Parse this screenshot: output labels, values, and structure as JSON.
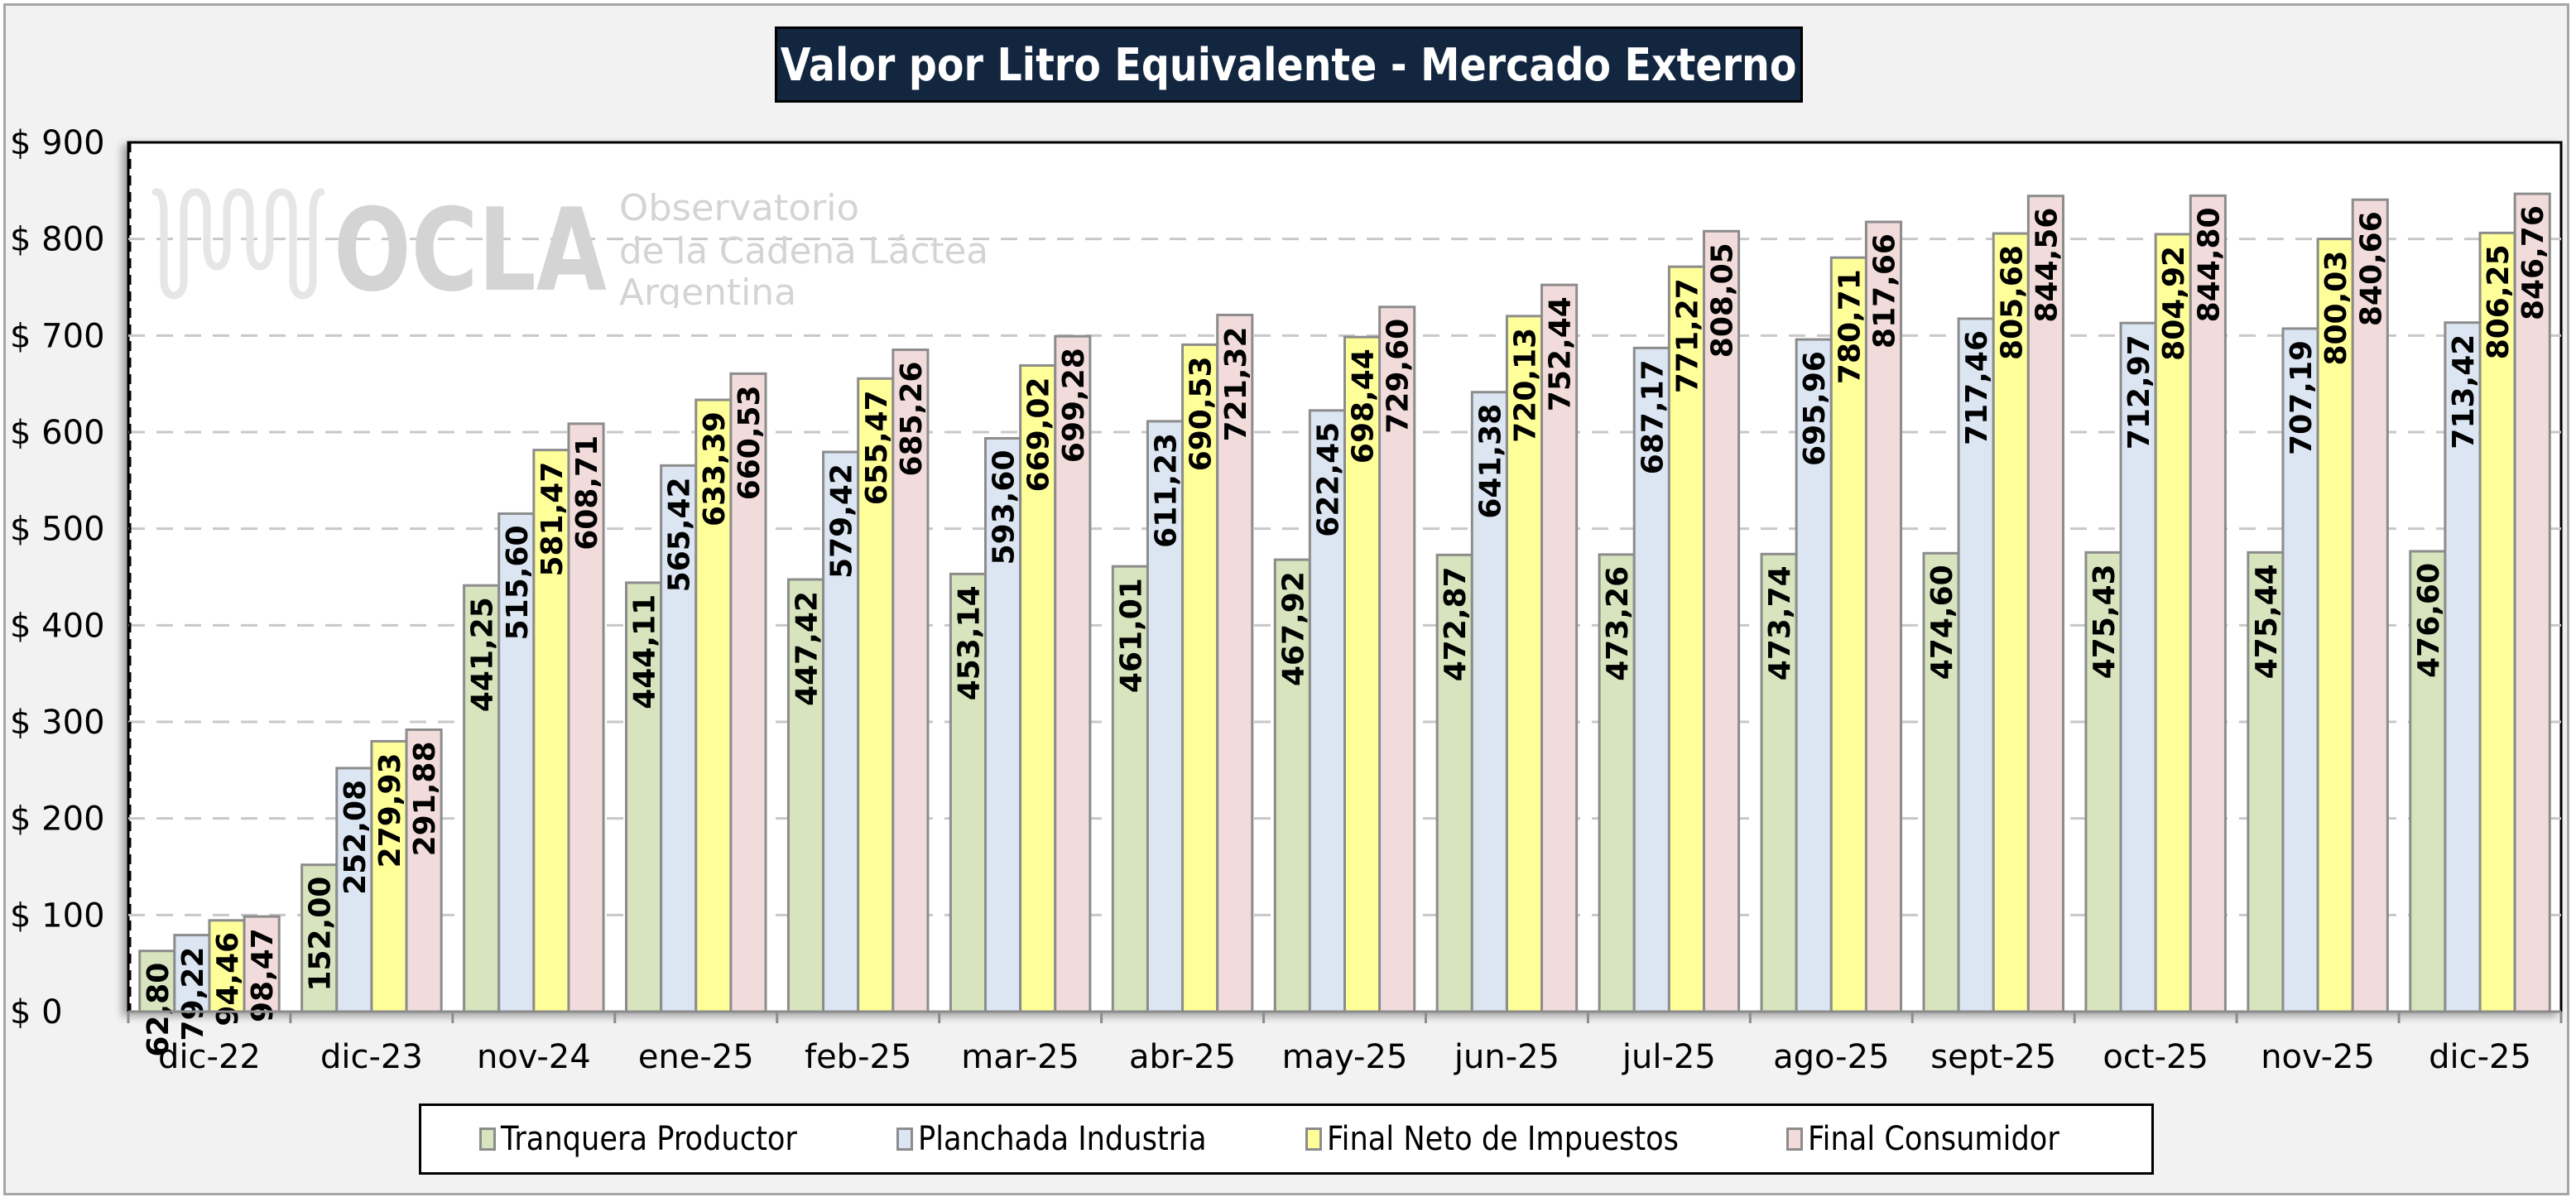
{
  "chart_data": {
    "type": "bar",
    "title": "Valor por Litro Equivalente - Mercado Externo",
    "xlabel": "",
    "ylabel": "",
    "ylim": [
      0,
      900
    ],
    "ytick_step": 100,
    "ytick_labels": [
      "$ 0",
      "$ 100",
      "$ 200",
      "$ 300",
      "$ 400",
      "$ 500",
      "$ 600",
      "$ 700",
      "$ 800",
      "$ 900"
    ],
    "grid": "horizontal-dashed",
    "legend_position": "bottom",
    "categories": [
      "dic-22",
      "dic-23",
      "nov-24",
      "ene-25",
      "feb-25",
      "mar-25",
      "abr-25",
      "may-25",
      "jun-25",
      "jul-25",
      "ago-25",
      "sept-25",
      "oct-25",
      "nov-25",
      "dic-25"
    ],
    "series": [
      {
        "name": "Tranquera Productor",
        "color": "#d7e4bd",
        "values": [
          62.8,
          152.0,
          441.25,
          444.11,
          447.42,
          453.14,
          461.01,
          467.92,
          472.87,
          473.26,
          473.74,
          474.6,
          475.43,
          475.44,
          476.6
        ],
        "labels": [
          "62,80",
          "152,00",
          "441,25",
          "444,11",
          "447,42",
          "453,14",
          "461,01",
          "467,92",
          "472,87",
          "473,26",
          "473,74",
          "474,60",
          "475,43",
          "475,44",
          "476,60"
        ]
      },
      {
        "name": "Planchada Industria",
        "color": "#dce6f2",
        "values": [
          79.22,
          252.08,
          515.6,
          565.42,
          579.42,
          593.6,
          611.23,
          622.45,
          641.38,
          687.17,
          695.96,
          717.46,
          712.97,
          707.19,
          713.42
        ],
        "labels": [
          "79,22",
          "252,08",
          "515,60",
          "565,42",
          "579,42",
          "593,60",
          "611,23",
          "622,45",
          "641,38",
          "687,17",
          "695,96",
          "717,46",
          "712,97",
          "707,19",
          "713,42"
        ]
      },
      {
        "name": "Final Neto de Impuestos",
        "color": "#ffff99",
        "values": [
          94.46,
          279.93,
          581.47,
          633.39,
          655.47,
          669.02,
          690.53,
          698.44,
          720.13,
          771.27,
          780.71,
          805.68,
          804.92,
          800.03,
          806.25
        ],
        "labels": [
          "94,46",
          "279,93",
          "581,47",
          "633,39",
          "655,47",
          "669,02",
          "690,53",
          "698,44",
          "720,13",
          "771,27",
          "780,71",
          "805,68",
          "804,92",
          "800,03",
          "806,25"
        ]
      },
      {
        "name": "Final Consumidor",
        "color": "#f2dcdb",
        "values": [
          98.47,
          291.88,
          608.71,
          660.53,
          685.26,
          699.28,
          721.32,
          729.6,
          752.44,
          808.05,
          817.66,
          844.56,
          844.8,
          840.66,
          846.76
        ],
        "labels": [
          "98,47",
          "291,88",
          "608,71",
          "660,53",
          "685,26",
          "699,28",
          "721,32",
          "729,60",
          "752,44",
          "808,05",
          "817,66",
          "844,56",
          "844,80",
          "840,66",
          "846,76"
        ]
      }
    ]
  },
  "title_box": {
    "background": "#132640",
    "text_color": "#ffffff"
  },
  "watermark": {
    "logo_text": "OCLA",
    "line1": "Observatorio",
    "line2": "de la Cadena Láctea",
    "line3": "Argentina",
    "icon": "milk-wave-icon"
  },
  "legend": {
    "items": [
      {
        "label": "Tranquera Productor",
        "color": "#d7e4bd"
      },
      {
        "label": "Planchada Industria",
        "color": "#dce6f2"
      },
      {
        "label": "Final Neto de Impuestos",
        "color": "#ffff99"
      },
      {
        "label": "Final Consumidor",
        "color": "#f2dcdb"
      }
    ]
  }
}
